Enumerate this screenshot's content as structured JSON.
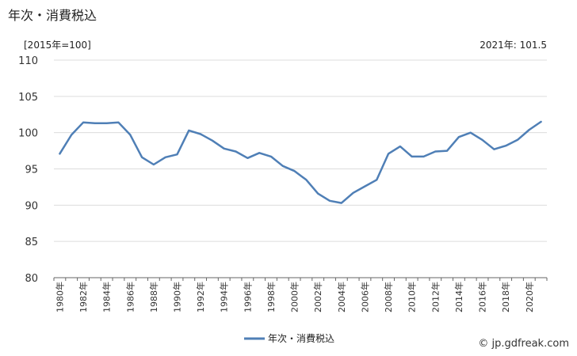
{
  "header": {
    "title": "年次・消費税込",
    "unit": "[2015年=100]",
    "latest": "2021年: 101.5"
  },
  "credit": "© jp.gdfreak.com",
  "chart_data": {
    "type": "line",
    "title": "年次・消費税込",
    "xlabel": "",
    "ylabel": "",
    "ylim": [
      80,
      110
    ],
    "yticks": [
      80,
      85,
      90,
      95,
      100,
      105,
      110
    ],
    "grid": true,
    "legend_position": "bottom-center",
    "x": [
      "1980年",
      "1981年",
      "1982年",
      "1983年",
      "1984年",
      "1985年",
      "1986年",
      "1987年",
      "1988年",
      "1989年",
      "1990年",
      "1991年",
      "1992年",
      "1993年",
      "1994年",
      "1995年",
      "1996年",
      "1997年",
      "1998年",
      "1999年",
      "2000年",
      "2001年",
      "2002年",
      "2003年",
      "2004年",
      "2005年",
      "2006年",
      "2007年",
      "2008年",
      "2009年",
      "2010年",
      "2011年",
      "2012年",
      "2013年",
      "2014年",
      "2015年",
      "2016年",
      "2017年",
      "2018年",
      "2019年",
      "2020年",
      "2021年"
    ],
    "xtick_labels": [
      "1980年",
      "1982年",
      "1984年",
      "1986年",
      "1988年",
      "1990年",
      "1992年",
      "1994年",
      "1996年",
      "1998年",
      "2000年",
      "2002年",
      "2004年",
      "2006年",
      "2008年",
      "2010年",
      "2012年",
      "2014年",
      "2016年",
      "2018年",
      "2020年"
    ],
    "series": [
      {
        "name": "年次・消費税込",
        "color": "#4f7fb6",
        "values": [
          97.1,
          99.7,
          101.4,
          101.3,
          101.3,
          101.4,
          99.7,
          96.6,
          95.6,
          96.6,
          97.0,
          100.3,
          99.8,
          98.9,
          97.8,
          97.4,
          96.5,
          97.2,
          96.7,
          95.4,
          94.7,
          93.5,
          91.6,
          90.6,
          90.3,
          91.7,
          92.6,
          93.5,
          97.1,
          98.1,
          96.7,
          96.7,
          97.4,
          97.5,
          99.4,
          100.0,
          99.0,
          97.7,
          98.2,
          99.0,
          100.4,
          101.5
        ]
      }
    ]
  }
}
